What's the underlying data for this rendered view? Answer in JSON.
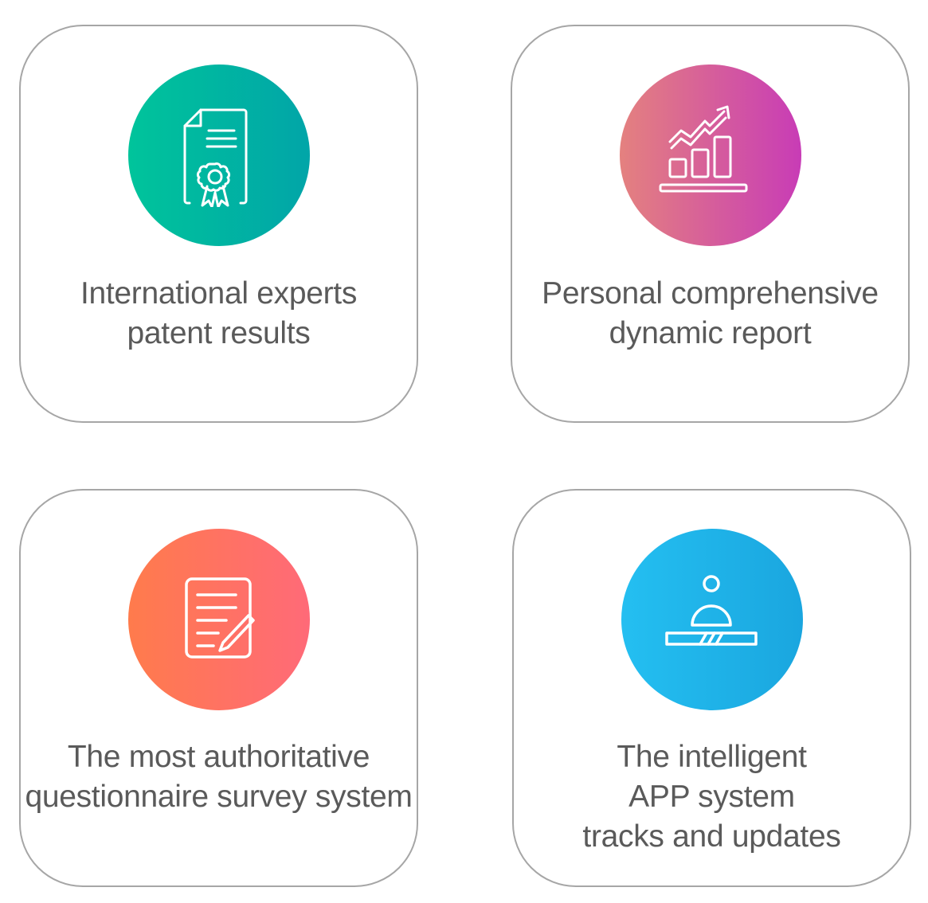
{
  "cards": [
    {
      "icon": "certificate-icon",
      "gradient": [
        "#00c49b",
        "#01a5a8"
      ],
      "lines": [
        "International experts",
        "patent results"
      ]
    },
    {
      "icon": "growth-chart-icon",
      "gradient": [
        "#e4817f",
        "#c83cb6"
      ],
      "lines": [
        "Personal comprehensive",
        "dynamic report"
      ]
    },
    {
      "icon": "questionnaire-icon",
      "gradient": [
        "#ff7b4c",
        "#ff6a78"
      ],
      "lines": [
        "The most authoritative",
        "questionnaire survey system"
      ]
    },
    {
      "icon": "user-tracking-icon",
      "gradient": [
        "#24bff1",
        "#1aa6df"
      ],
      "lines": [
        "The intelligent",
        "APP system",
        "tracks and updates"
      ]
    }
  ]
}
